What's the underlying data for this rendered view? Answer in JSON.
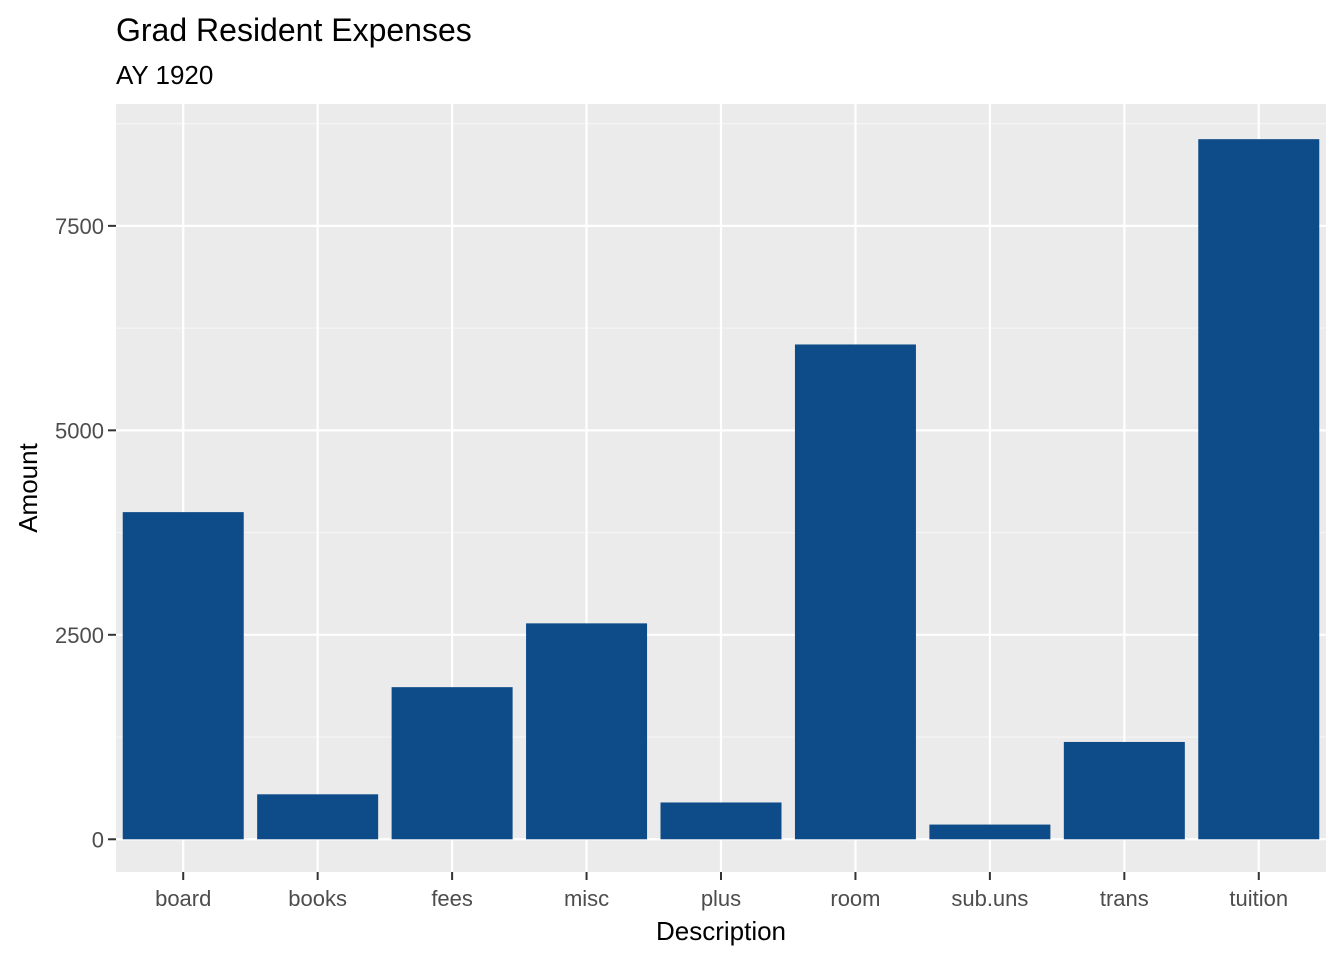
{
  "chart_data": {
    "type": "bar",
    "title": "Grad Resident Expenses",
    "subtitle": "AY 1920",
    "xlabel": "Description",
    "ylabel": "Amount",
    "categories": [
      "board",
      "books",
      "fees",
      "misc",
      "plus",
      "room",
      "sub.uns",
      "trans",
      "tuition"
    ],
    "values": [
      4000,
      550,
      1860,
      2640,
      450,
      6050,
      180,
      1190,
      8560
    ],
    "ylim": [
      -400,
      8990
    ],
    "yticks": [
      0,
      2500,
      5000,
      7500
    ],
    "ytick_labels": [
      "0",
      "2500",
      "5000",
      "7500"
    ],
    "grid": true,
    "legend": "none",
    "colors": {
      "bar": "#0d4c89",
      "panel": "#ebebeb",
      "grid_major": "#ffffff",
      "grid_minor": "#f5f5f5",
      "tick": "#333333"
    }
  }
}
